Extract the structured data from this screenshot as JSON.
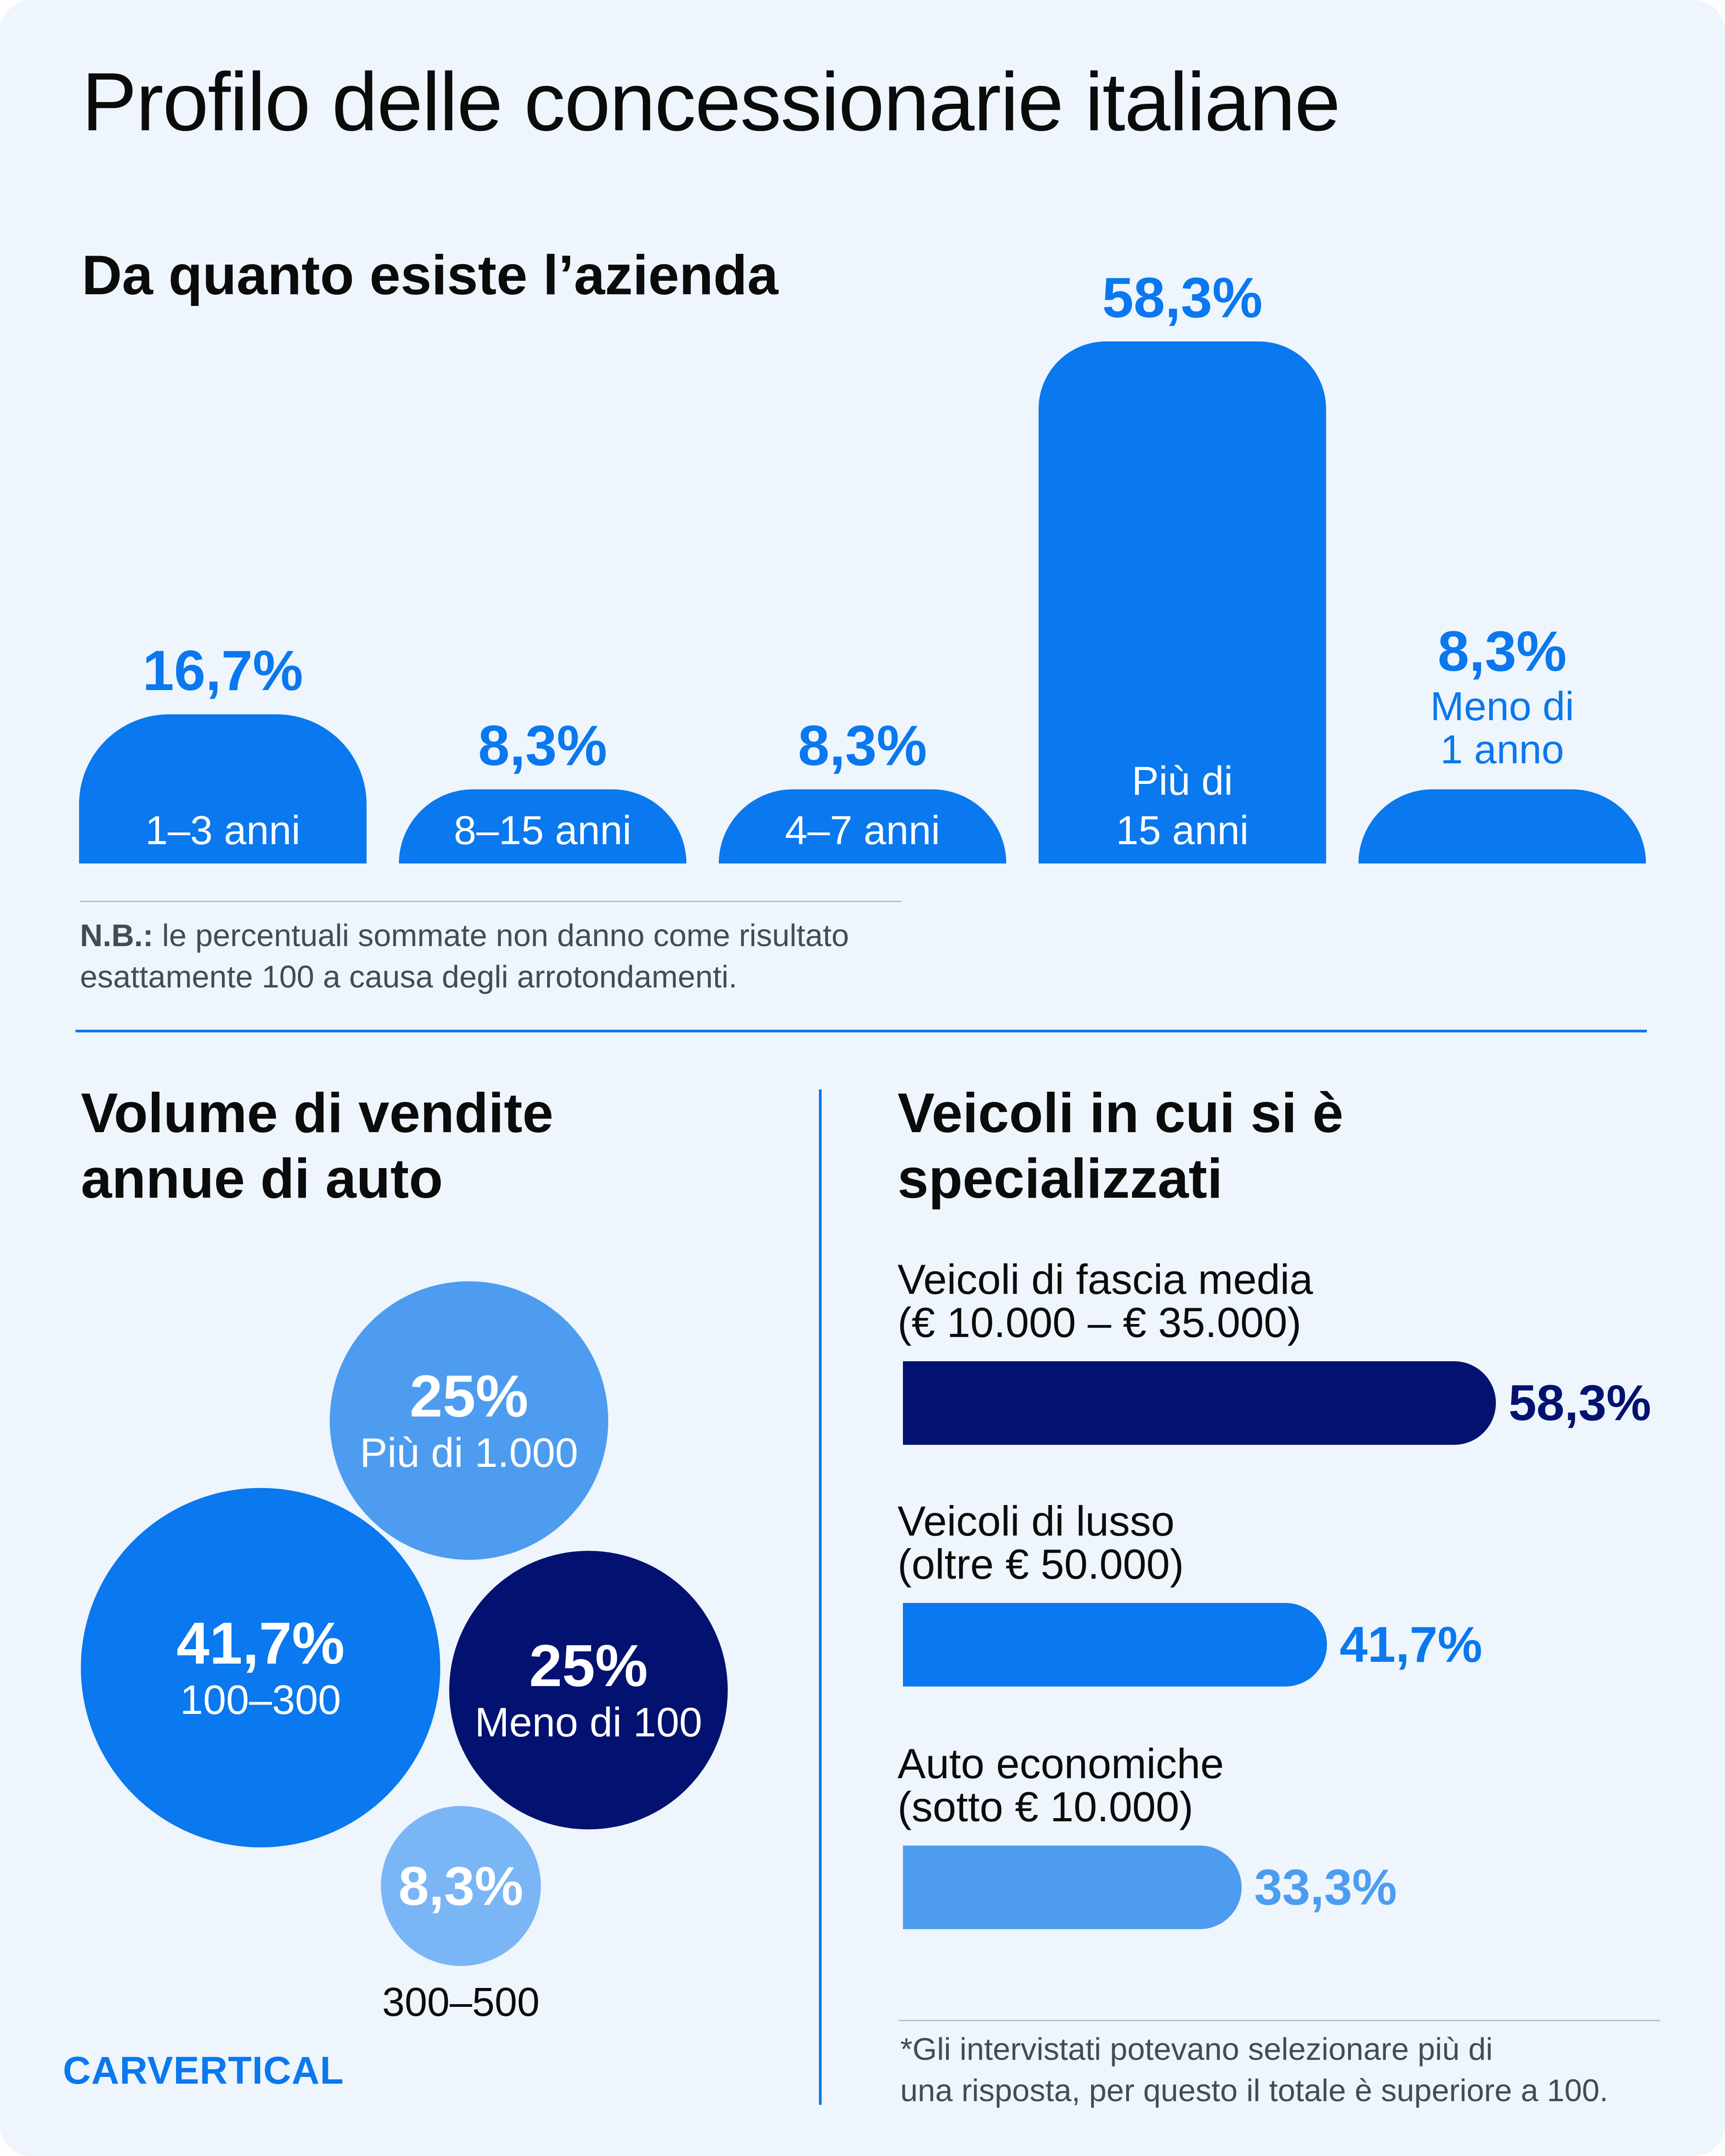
{
  "title": "Profilo delle concessionarie italiane",
  "colors": {
    "background": "#eef5fc",
    "blue": "#0a78ee",
    "navy": "#031270",
    "light_blue": "#4d9cf0",
    "lighter_blue": "#7ab5f5",
    "divider": "#0a78ee"
  },
  "section1": {
    "heading": "Da quanto esiste l’azienda",
    "note_bold": "N.B.:",
    "note_line1": " le percentuali sommate non danno come risultato",
    "note_line2": "esattamente 100 a causa degli arrotondamenti."
  },
  "section2": {
    "heading_line1": "Volume di vendite",
    "heading_line2": "annue di auto"
  },
  "section3": {
    "heading_line1": "Veicoli in cui si è",
    "heading_line2": "specializzati",
    "footnote_line1": "*Gli intervistati potevano selezionare più di",
    "footnote_line2": "una risposta, per questo il totale è superiore a 100."
  },
  "logo": "CARVERTICAL",
  "chart_data": [
    {
      "type": "bar",
      "title": "Da quanto esiste l’azienda",
      "unit": "%",
      "categories": [
        "1–3 anni",
        "8–15 anni",
        "4–7 anni",
        "Più di 15 anni",
        "Meno di 1 anno"
      ],
      "label_lines": [
        [
          "1–3 anni"
        ],
        [
          "8–15 anni"
        ],
        [
          "4–7 anni"
        ],
        [
          "Più di",
          "15 anni"
        ],
        [
          "Meno di",
          "1 anno"
        ]
      ],
      "values": [
        16.7,
        8.3,
        8.3,
        58.3,
        8.3
      ],
      "value_labels": [
        "16,7%",
        "8,3%",
        "8,3%",
        "58,3%",
        "8,3%"
      ],
      "ylim": [
        0,
        58.3
      ]
    },
    {
      "type": "bubble",
      "title": "Volume di vendite annue di auto",
      "unit": "%",
      "categories": [
        "Più di 1.000",
        "100–300",
        "Meno di 100",
        "300–500"
      ],
      "values": [
        25,
        41.7,
        25,
        8.3
      ],
      "value_labels": [
        "25%",
        "41,7%",
        "25%",
        "8,3%"
      ],
      "colors": [
        "#4d9cf0",
        "#0a78ee",
        "#031270",
        "#7ab5f5"
      ]
    },
    {
      "type": "bar",
      "orientation": "horizontal",
      "title": "Veicoli in cui si è specializzati",
      "unit": "%",
      "categories": [
        "Veicoli di fascia media",
        "Veicoli di lusso",
        "Auto economiche"
      ],
      "subcategories": [
        "(€ 10.000 – € 35.000)",
        "(oltre € 50.000)",
        "(sotto € 10.000)"
      ],
      "values": [
        58.3,
        41.7,
        33.3
      ],
      "value_labels": [
        "58,3%",
        "41,7%",
        "33,3%"
      ],
      "colors": [
        "#031270",
        "#0a78ee",
        "#4d9cf0"
      ],
      "xlim": [
        0,
        58.3
      ]
    }
  ]
}
